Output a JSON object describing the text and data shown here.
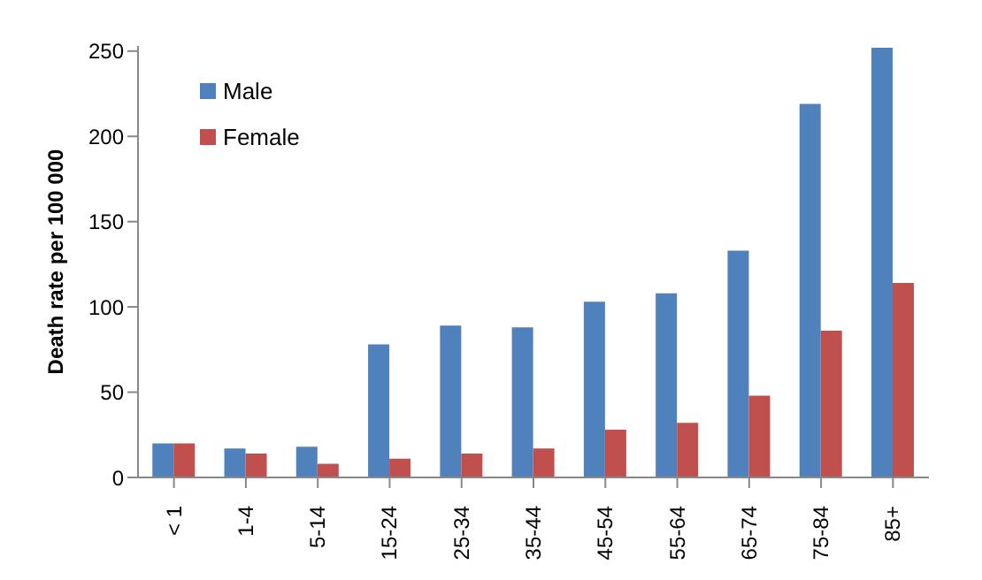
{
  "chart_data": {
    "type": "bar",
    "ylabel": "Death rate per 100 000",
    "categories": [
      "< 1",
      "1-4",
      "5-14",
      "15-24",
      "25-34",
      "35-44",
      "45-54",
      "55-64",
      "65-74",
      "75-84",
      "85+"
    ],
    "series": [
      {
        "name": "Male",
        "color": "#4f81bd",
        "values": [
          20,
          17,
          18,
          78,
          89,
          88,
          103,
          108,
          133,
          219,
          252
        ]
      },
      {
        "name": "Female",
        "color": "#c0504d",
        "values": [
          20,
          14,
          8,
          11,
          14,
          17,
          28,
          32,
          48,
          86,
          114
        ]
      }
    ],
    "ylim": [
      0,
      253
    ],
    "yticks": [
      0,
      50,
      100,
      150,
      200,
      250
    ],
    "grid": false,
    "legend": "top left"
  }
}
